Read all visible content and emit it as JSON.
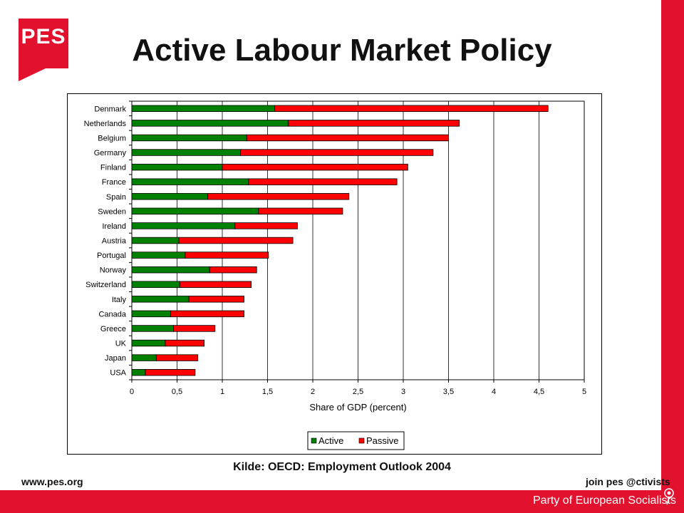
{
  "logo": {
    "text": "PES"
  },
  "title": "Active Labour Market Policy",
  "source": "Kilde: OECD: Employment Outlook 2004",
  "footer": {
    "url": "www.pes.org",
    "join": "join pes @ctivists",
    "party": "Party of European Socialists"
  },
  "colors": {
    "brand_red": "#e2122f",
    "active": "#008000",
    "passive": "#ff0000"
  },
  "icons": {
    "logo_mark": "pes-speech-bubble-icon",
    "rose": "rose-icon"
  },
  "chart_data": {
    "type": "bar",
    "orientation": "horizontal",
    "stacked": true,
    "categories": [
      "Denmark",
      "Netherlands",
      "Belgium",
      "Germany",
      "Finland",
      "France",
      "Spain",
      "Sweden",
      "Ireland",
      "Austria",
      "Portugal",
      "Norway",
      "Switzerland",
      "Italy",
      "Canada",
      "Greece",
      "UK",
      "Japan",
      "USA"
    ],
    "series": [
      {
        "name": "Active",
        "values": [
          1.58,
          1.73,
          1.27,
          1.2,
          1.0,
          1.29,
          0.84,
          1.4,
          1.14,
          0.52,
          0.59,
          0.86,
          0.53,
          0.63,
          0.43,
          0.46,
          0.37,
          0.27,
          0.15
        ]
      },
      {
        "name": "Passive",
        "values": [
          3.02,
          1.89,
          2.23,
          2.13,
          2.05,
          1.64,
          1.56,
          0.93,
          0.69,
          1.26,
          0.92,
          0.52,
          0.79,
          0.61,
          0.81,
          0.46,
          0.43,
          0.46,
          0.55
        ]
      }
    ],
    "xlabel": "Share of GDP (percent)",
    "xlim": [
      0,
      5
    ],
    "xticks": [
      "0",
      "0,5",
      "1",
      "1,5",
      "2",
      "2,5",
      "3",
      "3,5",
      "4",
      "4,5",
      "5"
    ],
    "grid": "vertical",
    "legend": "bottom-center"
  }
}
